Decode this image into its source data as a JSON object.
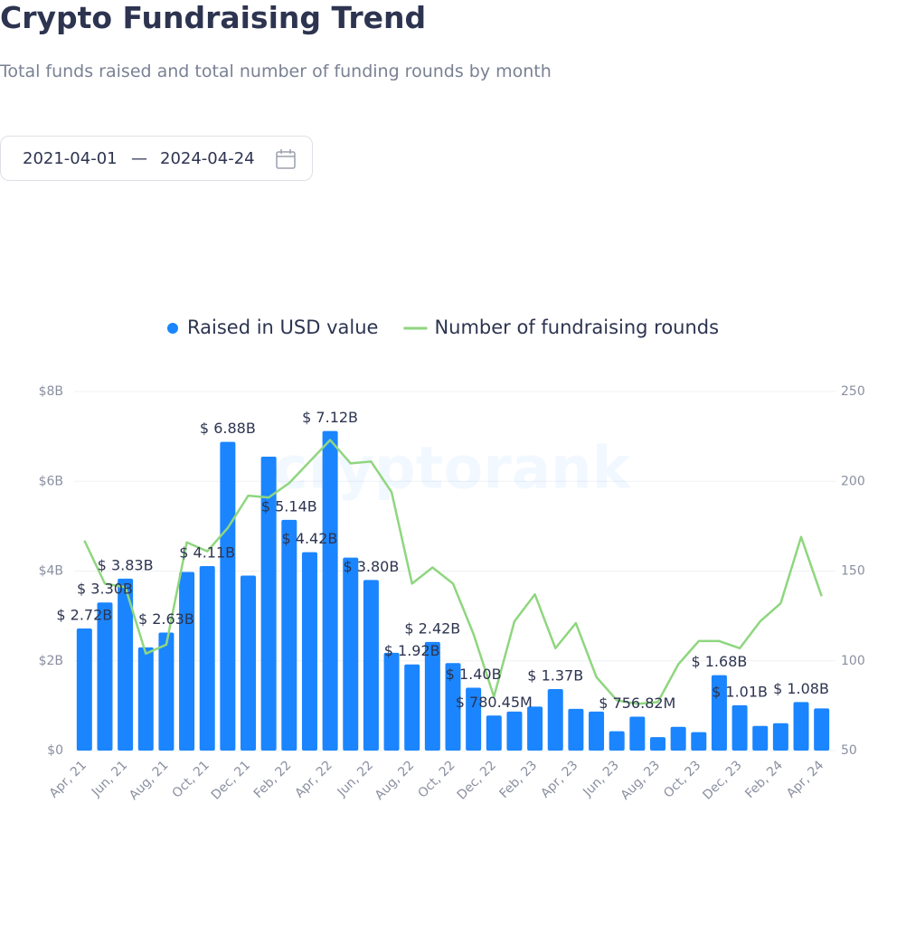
{
  "header": {
    "title": "Crypto Fundraising Trend",
    "subtitle": "Total funds raised and total number of funding rounds by month"
  },
  "date_range": {
    "start": "2021-04-01",
    "separator": "—",
    "end": "2024-04-24"
  },
  "chart_data": {
    "type": "bar",
    "watermark": "cryptorank",
    "categories": [
      "Apr, 21",
      null,
      "Jun, 21",
      null,
      "Aug, 21",
      null,
      "Oct, 21",
      null,
      "Dec, 21",
      null,
      "Feb, 22",
      null,
      "Apr, 22",
      null,
      "Jun, 22",
      null,
      "Aug, 22",
      null,
      "Oct, 22",
      null,
      "Dec, 22",
      null,
      "Feb, 23",
      null,
      "Apr, 23",
      null,
      "Jun, 23",
      null,
      "Aug, 23",
      null,
      "Oct, 23",
      null,
      "Dec, 23",
      null,
      "Feb, 24",
      null,
      "Apr, 24"
    ],
    "series": [
      {
        "name": "Raised in USD value",
        "type": "bar",
        "axis": "y",
        "color": "#1a85ff",
        "values": [
          2.72,
          3.3,
          3.83,
          2.3,
          2.63,
          3.98,
          4.11,
          6.88,
          3.9,
          6.55,
          5.14,
          4.42,
          7.12,
          4.3,
          3.8,
          2.18,
          1.92,
          2.42,
          1.95,
          1.4,
          0.78045,
          0.87,
          0.98,
          1.37,
          0.93,
          0.87,
          0.43,
          0.75682,
          0.3,
          0.53,
          0.41,
          1.68,
          1.01,
          0.55,
          0.61,
          1.08,
          0.94
        ],
        "value_labels": [
          "$ 2.72B",
          "$ 3.30B",
          "$ 3.83B",
          null,
          "$ 2.63B",
          null,
          "$ 4.11B",
          "$ 6.88B",
          null,
          null,
          "$ 5.14B",
          "$ 4.42B",
          "$ 7.12B",
          null,
          "$ 3.80B",
          null,
          "$ 1.92B",
          "$ 2.42B",
          null,
          "$ 1.40B",
          "$ 780.45M",
          null,
          null,
          "$ 1.37B",
          null,
          null,
          null,
          "$ 756.82M",
          null,
          null,
          null,
          "$ 1.68B",
          "$ 1.01B",
          null,
          null,
          "$ 1.08B",
          null
        ]
      },
      {
        "name": "Number of fundraising rounds",
        "type": "line",
        "axis": "y2",
        "color": "#8fd67f",
        "values": [
          167,
          143,
          141,
          104,
          109,
          166,
          161,
          174,
          192,
          191,
          199,
          211,
          223,
          210,
          211,
          194,
          143,
          152,
          143,
          115,
          80,
          122,
          137,
          107,
          121,
          91,
          78,
          76,
          77,
          98,
          111,
          111,
          107,
          122,
          132,
          169,
          136
        ]
      }
    ],
    "ylim": [
      0,
      8
    ],
    "yticks": [
      {
        "value": 0,
        "label": "$0"
      },
      {
        "value": 2,
        "label": "$2B"
      },
      {
        "value": 4,
        "label": "$4B"
      },
      {
        "value": 6,
        "label": "$6B"
      },
      {
        "value": 8,
        "label": "$8B"
      }
    ],
    "y2lim": [
      50,
      250
    ],
    "y2ticks": [
      50,
      100,
      150,
      200,
      250
    ],
    "grid": true,
    "legend": "top"
  }
}
